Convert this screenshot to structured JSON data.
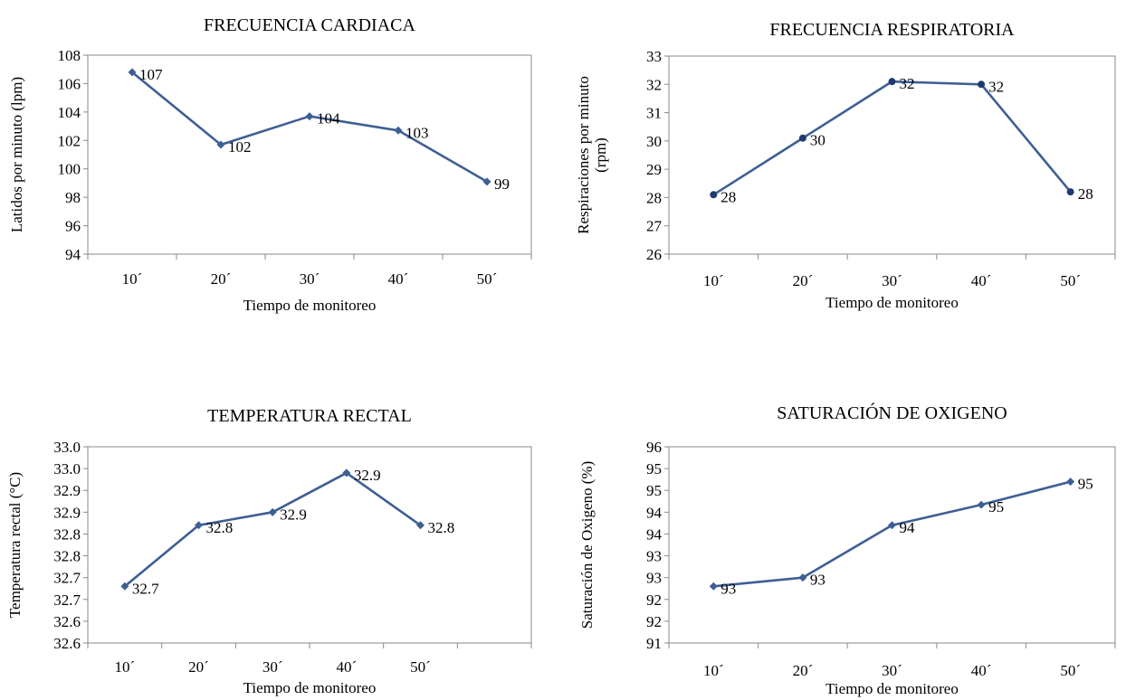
{
  "chart_data": [
    {
      "id": "fc",
      "type": "line",
      "title": "FRECUENCIA CARDIACA",
      "xlabel": "Tiempo de monitoreo",
      "ylabel": "Latidos por minuto (lpm)",
      "ylabel_lines": [
        "Latidos por minuto (lpm)"
      ],
      "categories": [
        "10´",
        "20´",
        "30´",
        "40´",
        "50´"
      ],
      "yticks": [
        "94",
        "96",
        "98",
        "100",
        "102",
        "104",
        "106",
        "108"
      ],
      "ylim": [
        94,
        108
      ],
      "marker": "diamond",
      "series": [
        {
          "values": [
            106.8,
            101.7,
            103.7,
            102.7,
            99.1
          ],
          "labels": [
            "107",
            "102",
            "104",
            "103",
            "99"
          ]
        }
      ]
    },
    {
      "id": "fr",
      "type": "line",
      "title": "FRECUENCIA RESPIRATORIA",
      "xlabel": "Tiempo de monitoreo",
      "ylabel": "Respiraciones por minuto (rpm)",
      "ylabel_lines": [
        "Respiraciones por minuto",
        "(rpm)"
      ],
      "categories": [
        "10´",
        "20´",
        "30´",
        "40´",
        "50´"
      ],
      "yticks": [
        "26",
        "27",
        "28",
        "29",
        "30",
        "31",
        "32",
        "33"
      ],
      "ylim": [
        26,
        33
      ],
      "marker": "circle",
      "series": [
        {
          "values": [
            28.1,
            30.1,
            32.1,
            32.0,
            28.2
          ],
          "labels": [
            "28",
            "30",
            "32",
            "32",
            "28"
          ]
        }
      ]
    },
    {
      "id": "tr",
      "type": "line",
      "title": "TEMPERATURA RECTAL",
      "xlabel": "Tiempo de monitoreo",
      "ylabel": "Temperatura rectal (°C)",
      "ylabel_lines": [
        "Temperatura rectal (°C)"
      ],
      "categories": [
        "10´",
        "20´",
        "30´",
        "40´",
        "50´"
      ],
      "yticks": [
        "32.6",
        "32.6",
        "32.7",
        "32.7",
        "32.8",
        "32.8",
        "32.9",
        "32.9",
        "33.0",
        "33.0"
      ],
      "ylim": [
        32.55,
        33.0
      ],
      "marker": "diamond",
      "series": [
        {
          "values": [
            32.68,
            32.82,
            32.85,
            32.94,
            32.82
          ],
          "labels": [
            "32.7",
            "32.8",
            "32.9",
            "32.9",
            "32.8"
          ]
        }
      ]
    },
    {
      "id": "so",
      "type": "line",
      "title": "SATURACIÓN DE OXIGENO",
      "xlabel": "Tiempo de monitoreo",
      "ylabel": "Saturación de Oxigeno (%)",
      "ylabel_lines": [
        "Saturación de Oxigeno (%)"
      ],
      "categories": [
        "10´",
        "20´",
        "30´",
        "40´",
        "50´"
      ],
      "yticks": [
        "91",
        "92",
        "92",
        "93",
        "93",
        "94",
        "94",
        "95",
        "95",
        "96"
      ],
      "ylim": [
        91.5,
        96
      ],
      "marker": "diamond",
      "series": [
        {
          "values": [
            92.8,
            93.0,
            94.2,
            94.67,
            95.2
          ],
          "labels": [
            "93",
            "93",
            "94",
            "95",
            "95"
          ]
        }
      ]
    }
  ]
}
